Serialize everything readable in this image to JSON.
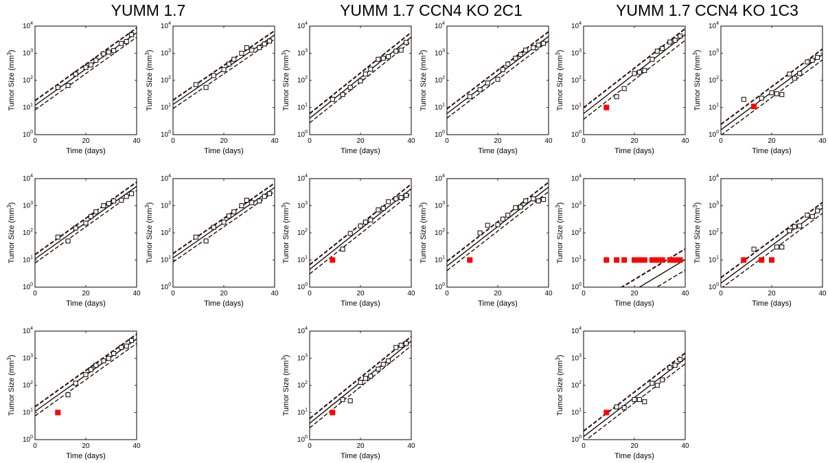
{
  "group_titles": [
    "YUMM 1.7",
    "YUMM 1.7 CCN4 KO 2C1",
    "YUMM 1.7 CCN4 KO 1C3"
  ],
  "axes_labels": {
    "xlabel": "Time (days)",
    "ylabel": "Tumor Size (mm",
    "ylabel_sup": "3",
    "ylabel_end": ")"
  },
  "colors": {
    "fit": "#000000",
    "ci_upper": "#1f2a8c",
    "ci_lower": "#d4a000",
    "ci_dark": "#000000",
    "ci_red": "#c0392b",
    "censored": "#ff0000",
    "marker": "#000000"
  },
  "chart_data": [
    {
      "panel": "YUMM 1.7 mouse 1",
      "type": "scatter",
      "scale": "log",
      "xlim": [
        0,
        40
      ],
      "ylim": [
        1,
        10000
      ],
      "xticks": [
        0,
        20,
        40
      ],
      "yticks": [
        1,
        10,
        100,
        1000,
        10000
      ],
      "xlabel": "Time (days)",
      "ylabel": "Tumor Size (mm3)",
      "points": [
        [
          9,
          55
        ],
        [
          13,
          65
        ],
        [
          16,
          170
        ],
        [
          20,
          300
        ],
        [
          22,
          370
        ],
        [
          24,
          550
        ],
        [
          27,
          950
        ],
        [
          29,
          1100
        ],
        [
          31,
          1250
        ],
        [
          34,
          2300
        ],
        [
          36,
          2700
        ],
        [
          38,
          4800
        ]
      ],
      "censored": [],
      "fit": [
        [
          0,
          12
        ],
        [
          38,
          4200
        ]
      ],
      "band": 1.45
    },
    {
      "panel": "YUMM 1.7 mouse 2",
      "type": "scatter",
      "scale": "log",
      "xlim": [
        0,
        40
      ],
      "ylim": [
        1,
        10000
      ],
      "xticks": [
        0,
        20,
        40
      ],
      "yticks": [
        1,
        10,
        100,
        1000,
        10000
      ],
      "xlabel": "Time (days)",
      "ylabel": "Tumor Size (mm3)",
      "points": [
        [
          9,
          70
        ],
        [
          13,
          55
        ],
        [
          16,
          150
        ],
        [
          20,
          250
        ],
        [
          22,
          400
        ],
        [
          24,
          600
        ],
        [
          27,
          1000
        ],
        [
          29,
          1600
        ],
        [
          31,
          1300
        ],
        [
          34,
          1600
        ],
        [
          36,
          2200
        ],
        [
          38,
          2800
        ]
      ],
      "censored": [],
      "fit": [
        [
          0,
          13
        ],
        [
          38,
          3500
        ]
      ],
      "band": 1.4
    },
    {
      "panel": "YUMM 1.7 CCN4 KO 2C1 mouse 1",
      "type": "scatter",
      "scale": "log",
      "xlim": [
        0,
        40
      ],
      "ylim": [
        1,
        10000
      ],
      "xticks": [
        0,
        20,
        40
      ],
      "yticks": [
        1,
        10,
        100,
        1000,
        10000
      ],
      "xlabel": "Time (days)",
      "ylabel": "Tumor Size (mm3)",
      "points": [
        [
          9,
          20
        ],
        [
          13,
          30
        ],
        [
          16,
          55
        ],
        [
          20,
          95
        ],
        [
          22,
          170
        ],
        [
          24,
          260
        ],
        [
          27,
          600
        ],
        [
          29,
          650
        ],
        [
          31,
          750
        ],
        [
          34,
          1200
        ],
        [
          36,
          1300
        ],
        [
          38,
          2500
        ]
      ],
      "censored": [],
      "fit": [
        [
          0,
          4
        ],
        [
          38,
          2800
        ]
      ],
      "band": 1.45
    },
    {
      "panel": "YUMM 1.7 CCN4 KO 2C1 mouse 2",
      "type": "scatter",
      "scale": "log",
      "xlim": [
        0,
        40
      ],
      "ylim": [
        1,
        10000
      ],
      "xticks": [
        0,
        20,
        40
      ],
      "yticks": [
        1,
        10,
        100,
        1000,
        10000
      ],
      "xlabel": "Time (days)",
      "ylabel": "Tumor Size (mm3)",
      "points": [
        [
          9,
          25
        ],
        [
          13,
          45
        ],
        [
          16,
          80
        ],
        [
          20,
          110
        ],
        [
          22,
          250
        ],
        [
          24,
          400
        ],
        [
          27,
          650
        ],
        [
          29,
          900
        ],
        [
          31,
          1300
        ],
        [
          34,
          1600
        ],
        [
          36,
          2000
        ],
        [
          38,
          2300
        ]
      ],
      "censored": [],
      "fit": [
        [
          0,
          6
        ],
        [
          38,
          3000
        ]
      ],
      "band": 1.45
    },
    {
      "panel": "YUMM 1.7 CCN4 KO 1C3 mouse 1",
      "type": "scatter",
      "scale": "log",
      "xlim": [
        0,
        40
      ],
      "ylim": [
        1,
        10000
      ],
      "xticks": [
        0,
        20,
        40
      ],
      "yticks": [
        1,
        10,
        100,
        1000,
        10000
      ],
      "xlabel": "Time (days)",
      "ylabel": "Tumor Size (mm3)",
      "points": [
        [
          13,
          25
        ],
        [
          16,
          50
        ],
        [
          20,
          180
        ],
        [
          22,
          200
        ],
        [
          24,
          230
        ],
        [
          27,
          600
        ],
        [
          29,
          1200
        ],
        [
          31,
          1500
        ],
        [
          34,
          2600
        ],
        [
          36,
          3000
        ],
        [
          38,
          4300
        ]
      ],
      "censored": [
        [
          9,
          10
        ]
      ],
      "fit": [
        [
          0,
          6
        ],
        [
          38,
          3500
        ]
      ],
      "band": 1.6
    },
    {
      "panel": "YUMM 1.7 CCN4 KO 1C3 mouse 2",
      "type": "scatter",
      "scale": "log",
      "xlim": [
        0,
        40
      ],
      "ylim": [
        1,
        10000
      ],
      "xticks": [
        0,
        20,
        40
      ],
      "yticks": [
        1,
        10,
        100,
        1000,
        10000
      ],
      "xlabel": "Time (days)",
      "ylabel": "Tumor Size (mm3)",
      "points": [
        [
          9,
          20
        ],
        [
          16,
          22
        ],
        [
          20,
          35
        ],
        [
          22,
          32
        ],
        [
          24,
          30
        ],
        [
          27,
          170
        ],
        [
          29,
          120
        ],
        [
          31,
          180
        ],
        [
          34,
          480
        ],
        [
          36,
          550
        ],
        [
          38,
          700
        ]
      ],
      "censored": [
        [
          13,
          11
        ]
      ],
      "fit": [
        [
          0,
          1.5
        ],
        [
          38,
          650
        ]
      ],
      "band": 1.55
    },
    {
      "panel": "YUMM 1.7 mouse 3",
      "type": "scatter",
      "scale": "log",
      "xlim": [
        0,
        40
      ],
      "ylim": [
        1,
        10000
      ],
      "xticks": [
        0,
        20,
        40
      ],
      "yticks": [
        1,
        10,
        100,
        1000,
        10000
      ],
      "xlabel": "Time (days)",
      "ylabel": "Tumor Size (mm3)",
      "points": [
        [
          9,
          70
        ],
        [
          13,
          50
        ],
        [
          16,
          150
        ],
        [
          20,
          230
        ],
        [
          22,
          400
        ],
        [
          24,
          600
        ],
        [
          27,
          1000
        ],
        [
          29,
          1200
        ],
        [
          31,
          1500
        ],
        [
          34,
          1600
        ],
        [
          36,
          2200
        ],
        [
          38,
          2800
        ]
      ],
      "censored": [],
      "fit": [
        [
          0,
          11
        ],
        [
          38,
          3800
        ]
      ],
      "band": 1.4
    },
    {
      "panel": "YUMM 1.7 mouse 4",
      "type": "scatter",
      "scale": "log",
      "xlim": [
        0,
        40
      ],
      "ylim": [
        1,
        10000
      ],
      "xticks": [
        0,
        20,
        40
      ],
      "yticks": [
        1,
        10,
        100,
        1000,
        10000
      ],
      "xlabel": "Time (days)",
      "ylabel": "Tumor Size (mm3)",
      "points": [
        [
          9,
          70
        ],
        [
          13,
          50
        ],
        [
          16,
          160
        ],
        [
          20,
          250
        ],
        [
          22,
          420
        ],
        [
          24,
          600
        ],
        [
          27,
          1000
        ],
        [
          29,
          1600
        ],
        [
          31,
          1300
        ],
        [
          34,
          1500
        ],
        [
          36,
          2200
        ],
        [
          38,
          2800
        ]
      ],
      "censored": [],
      "fit": [
        [
          0,
          12
        ],
        [
          38,
          3500
        ]
      ],
      "band": 1.4
    },
    {
      "panel": "YUMM 1.7 CCN4 KO 2C1 mouse 3",
      "type": "scatter",
      "scale": "log",
      "xlim": [
        0,
        40
      ],
      "ylim": [
        1,
        10000
      ],
      "xticks": [
        0,
        20,
        40
      ],
      "yticks": [
        1,
        10,
        100,
        1000,
        10000
      ],
      "xlabel": "Time (days)",
      "ylabel": "Tumor Size (mm3)",
      "points": [
        [
          13,
          25
        ],
        [
          16,
          95
        ],
        [
          20,
          180
        ],
        [
          22,
          250
        ],
        [
          24,
          300
        ],
        [
          27,
          700
        ],
        [
          29,
          800
        ],
        [
          31,
          1400
        ],
        [
          34,
          1800
        ],
        [
          36,
          2000
        ],
        [
          38,
          2400
        ]
      ],
      "censored": [
        [
          9,
          10
        ]
      ],
      "fit": [
        [
          0,
          4.5
        ],
        [
          38,
          3000
        ]
      ],
      "band": 1.45
    },
    {
      "panel": "YUMM 1.7 CCN4 KO 2C1 mouse 4",
      "type": "scatter",
      "scale": "log",
      "xlim": [
        0,
        40
      ],
      "ylim": [
        1,
        10000
      ],
      "xticks": [
        0,
        20,
        40
      ],
      "yticks": [
        1,
        10,
        100,
        1000,
        10000
      ],
      "xlabel": "Time (days)",
      "ylabel": "Tumor Size (mm3)",
      "points": [
        [
          13,
          100
        ],
        [
          16,
          190
        ],
        [
          20,
          200
        ],
        [
          22,
          320
        ],
        [
          24,
          450
        ],
        [
          27,
          850
        ],
        [
          29,
          900
        ],
        [
          31,
          1500
        ],
        [
          34,
          1800
        ],
        [
          36,
          1500
        ],
        [
          38,
          1700
        ]
      ],
      "censored": [
        [
          9,
          10
        ]
      ],
      "fit": [
        [
          0,
          6
        ],
        [
          38,
          3500
        ]
      ],
      "band": 1.45
    },
    {
      "panel": "YUMM 1.7 CCN4 KO 1C3 mouse 3",
      "type": "scatter",
      "scale": "log",
      "xlim": [
        0,
        40
      ],
      "ylim": [
        1,
        10000
      ],
      "xticks": [
        0,
        20,
        40
      ],
      "yticks": [
        1,
        10,
        100,
        1000,
        10000
      ],
      "xlabel": "Time (days)",
      "ylabel": "Tumor Size (mm3)",
      "points": [],
      "censored": [
        [
          9,
          10
        ],
        [
          13,
          10
        ],
        [
          16,
          10
        ],
        [
          20,
          10
        ],
        [
          22,
          10
        ],
        [
          24,
          10
        ],
        [
          27,
          10
        ],
        [
          29,
          10
        ],
        [
          31,
          10
        ],
        [
          34,
          10
        ],
        [
          36,
          10
        ],
        [
          38,
          10
        ]
      ],
      "fit": [
        [
          22,
          1
        ],
        [
          38,
          8
        ]
      ],
      "band": 2.4
    },
    {
      "panel": "YUMM 1.7 CCN4 KO 1C3 mouse 4",
      "type": "scatter",
      "scale": "log",
      "xlim": [
        0,
        40
      ],
      "ylim": [
        1,
        10000
      ],
      "xticks": [
        0,
        20,
        40
      ],
      "yticks": [
        1,
        10,
        100,
        1000,
        10000
      ],
      "xlabel": "Time (days)",
      "ylabel": "Tumor Size (mm3)",
      "points": [
        [
          13,
          25
        ],
        [
          22,
          30
        ],
        [
          24,
          30
        ],
        [
          27,
          120
        ],
        [
          29,
          170
        ],
        [
          31,
          180
        ],
        [
          34,
          450
        ],
        [
          36,
          400
        ],
        [
          38,
          650
        ]
      ],
      "censored": [
        [
          9,
          10
        ],
        [
          16,
          10
        ],
        [
          20,
          10
        ]
      ],
      "fit": [
        [
          0,
          1.4
        ],
        [
          38,
          600
        ]
      ],
      "band": 1.55
    },
    {
      "panel": "YUMM 1.7 mouse 5",
      "type": "scatter",
      "scale": "log",
      "xlim": [
        0,
        40
      ],
      "ylim": [
        1,
        10000
      ],
      "xticks": [
        0,
        20,
        40
      ],
      "yticks": [
        1,
        10,
        100,
        1000,
        10000
      ],
      "xlabel": "Time (days)",
      "ylabel": "Tumor Size (mm3)",
      "points": [
        [
          13,
          45
        ],
        [
          16,
          120
        ],
        [
          20,
          250
        ],
        [
          22,
          380
        ],
        [
          24,
          550
        ],
        [
          27,
          800
        ],
        [
          29,
          1000
        ],
        [
          31,
          1500
        ],
        [
          34,
          2500
        ],
        [
          36,
          2800
        ],
        [
          38,
          4500
        ]
      ],
      "censored": [
        [
          9,
          10
        ]
      ],
      "fit": [
        [
          0,
          11
        ],
        [
          38,
          3800
        ]
      ],
      "band": 1.45
    },
    {
      "panel": "YUMM 1.7 CCN4 KO 2C1 mouse 5",
      "type": "scatter",
      "scale": "log",
      "xlim": [
        0,
        40
      ],
      "ylim": [
        1,
        10000
      ],
      "xticks": [
        0,
        20,
        40
      ],
      "yticks": [
        1,
        10,
        100,
        1000,
        10000
      ],
      "xlabel": "Time (days)",
      "ylabel": "Tumor Size (mm3)",
      "points": [
        [
          13,
          30
        ],
        [
          16,
          27
        ],
        [
          20,
          130
        ],
        [
          22,
          180
        ],
        [
          24,
          220
        ],
        [
          27,
          400
        ],
        [
          29,
          600
        ],
        [
          31,
          800
        ],
        [
          34,
          2500
        ],
        [
          36,
          3000
        ],
        [
          38,
          3500
        ]
      ],
      "censored": [
        [
          9,
          10
        ]
      ],
      "fit": [
        [
          0,
          4
        ],
        [
          38,
          3000
        ]
      ],
      "band": 1.45
    },
    {
      "panel": "YUMM 1.7 CCN4 KO 1C3 mouse 5",
      "type": "scatter",
      "scale": "log",
      "xlim": [
        0,
        40
      ],
      "ylim": [
        1,
        10000
      ],
      "xticks": [
        0,
        20,
        40
      ],
      "yticks": [
        1,
        10,
        100,
        1000,
        10000
      ],
      "xlabel": "Time (days)",
      "ylabel": "Tumor Size (mm3)",
      "points": [
        [
          13,
          16
        ],
        [
          16,
          15
        ],
        [
          20,
          30
        ],
        [
          22,
          30
        ],
        [
          24,
          25
        ],
        [
          27,
          120
        ],
        [
          29,
          100
        ],
        [
          31,
          160
        ],
        [
          34,
          450
        ],
        [
          36,
          550
        ],
        [
          38,
          900
        ]
      ],
      "censored": [
        [
          9,
          10
        ]
      ],
      "fit": [
        [
          0,
          1.3
        ],
        [
          38,
          700
        ]
      ],
      "band": 1.55
    }
  ]
}
